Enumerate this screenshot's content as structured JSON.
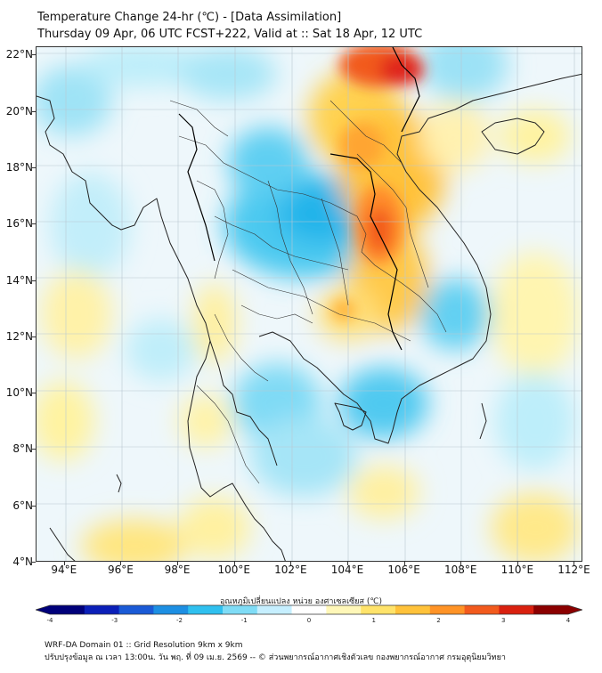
{
  "title": {
    "line1": "Temperature Change 24-hr (℃) - [Data Assimilation]",
    "line2": "Thursday 09 Apr, 06 UTC FCST+222, Valid at :: Sat 18 Apr, 12 UTC"
  },
  "map": {
    "lat_labels": [
      "22°N",
      "20°N",
      "18°N",
      "16°N",
      "14°N",
      "12°N",
      "10°N",
      "8°N",
      "6°N",
      "4°N"
    ],
    "lon_labels": [
      "94°E",
      "96°E",
      "98°E",
      "100°E",
      "102°E",
      "104°E",
      "106°E",
      "108°E",
      "110°E",
      "112°E"
    ],
    "lat_range": [
      4,
      22.3
    ],
    "lon_range": [
      93,
      112.3
    ]
  },
  "colorbar": {
    "label": "อุณหภูมิเปลี่ยนแปลง หน่วย องศาเซลเซียส (℃)",
    "ticks": [
      "-4",
      "-3",
      "-2",
      "-1",
      "0",
      "1",
      "2",
      "3",
      "4"
    ],
    "range": [
      -4,
      4
    ],
    "colors": [
      "#00007a",
      "#0b1fb8",
      "#1a5ad6",
      "#1d8fe3",
      "#2fc0ef",
      "#7fdcf6",
      "#c6efff",
      "#ffffff",
      "#fff7b8",
      "#ffe36a",
      "#ffc23a",
      "#ff9326",
      "#f25a1d",
      "#d9200f",
      "#8b0000"
    ]
  },
  "footer": {
    "line1": "WRF-DA Domain 01 :: Grid Resolution 9km x 9km",
    "line2": "ปรับปรุงข้อมูล ณ เวลา 13:00น. วัน พฤ. ที่ 09 เม.ย. 2569 -- © ส่วนพยากรณ์อากาศเชิงตัวเลข กองพยากรณ์อากาศ กรมอุตุนิยมวิทยา"
  }
}
